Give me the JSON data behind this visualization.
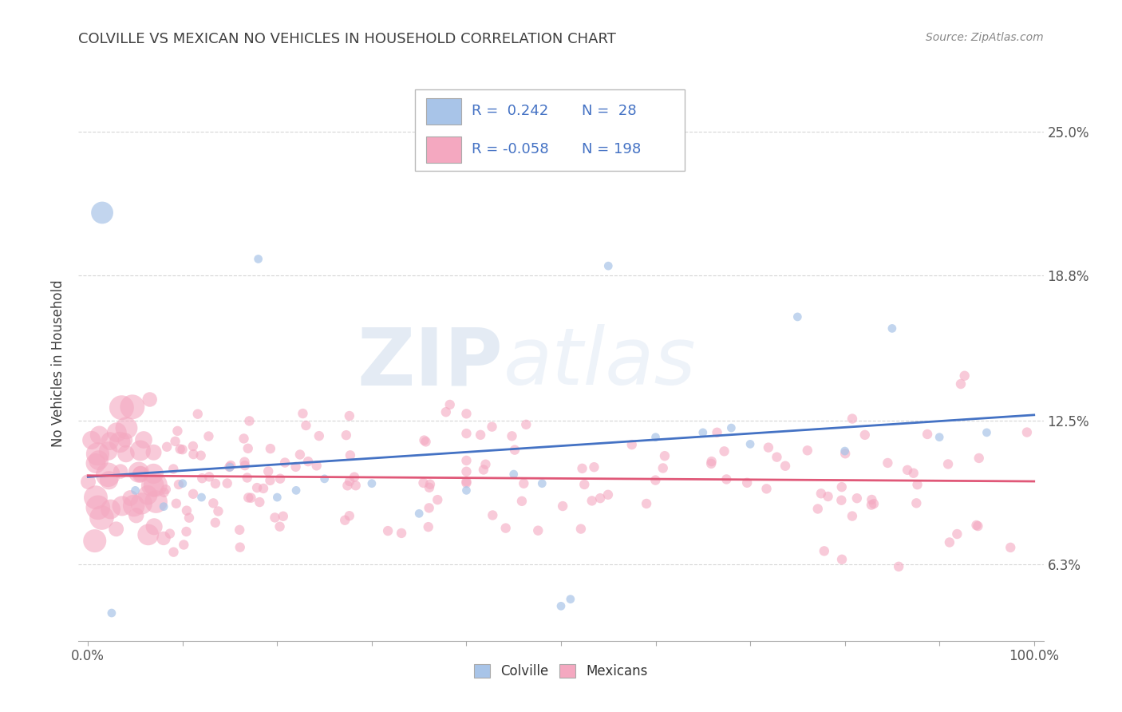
{
  "title": "COLVILLE VS MEXICAN NO VEHICLES IN HOUSEHOLD CORRELATION CHART",
  "source": "Source: ZipAtlas.com",
  "ylabel": "No Vehicles in Household",
  "colville_R": 0.242,
  "colville_N": 28,
  "mexican_R": -0.058,
  "mexican_N": 198,
  "colville_color": "#a8c4e8",
  "mexican_color": "#f4a8c0",
  "colville_line_color": "#4472c4",
  "mexican_line_color": "#e05878",
  "legend_text_color": "#4472c4",
  "title_color": "#404040",
  "source_color": "#888888",
  "grid_color": "#cccccc",
  "yticks": [
    6.3,
    12.5,
    18.8,
    25.0
  ],
  "ytick_labels": [
    "6.3%",
    "12.5%",
    "18.8%",
    "25.0%"
  ],
  "ylim_low": 3.0,
  "ylim_high": 27.0,
  "xlim_low": -1,
  "xlim_high": 101,
  "colville_seed": 12,
  "mexican_seed": 7
}
